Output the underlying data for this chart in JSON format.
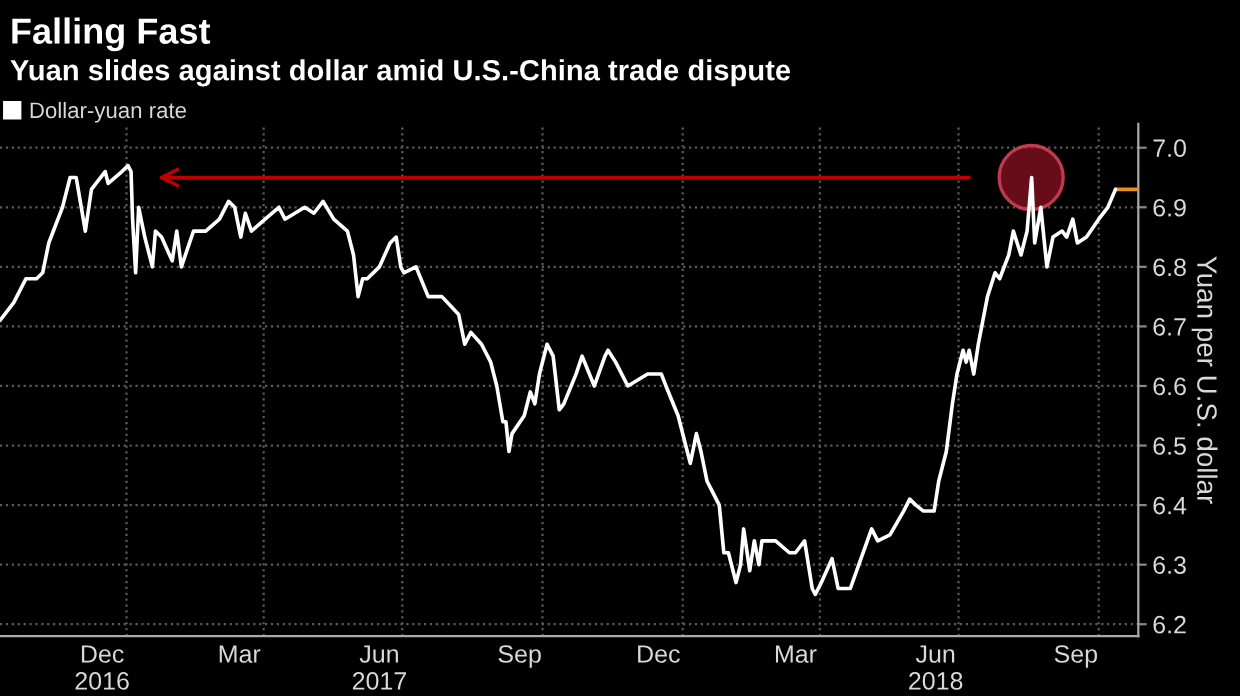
{
  "chart_data": {
    "type": "line",
    "title": "Falling Fast",
    "subtitle": "Yuan slides against dollar amid U.S.-China trade dispute",
    "ylabel": "Yuan per U.S. dollar",
    "x": [
      "2016-10-10",
      "2016-10-19",
      "2016-10-27",
      "2016-11-03",
      "2016-11-07",
      "2016-11-11",
      "2016-11-20",
      "2016-11-25",
      "2016-11-29",
      "2016-12-05",
      "2016-12-09",
      "2016-12-18",
      "2016-12-20",
      "2016-12-29",
      "2017-01-02",
      "2017-01-04",
      "2017-01-05",
      "2017-01-07",
      "2017-01-09",
      "2017-01-13",
      "2017-01-18",
      "2017-01-20",
      "2017-01-24",
      "2017-01-31",
      "2017-02-03",
      "2017-02-06",
      "2017-02-14",
      "2017-02-22",
      "2017-03-03",
      "2017-03-09",
      "2017-03-13",
      "2017-03-17",
      "2017-03-20",
      "2017-03-24",
      "2017-04-02",
      "2017-04-11",
      "2017-04-15",
      "2017-04-28",
      "2017-05-04",
      "2017-05-10",
      "2017-05-17",
      "2017-05-26",
      "2017-05-30",
      "2017-06-02",
      "2017-06-05",
      "2017-06-08",
      "2017-06-16",
      "2017-06-23",
      "2017-06-27",
      "2017-06-30",
      "2017-07-02",
      "2017-07-10",
      "2017-07-18",
      "2017-07-27",
      "2017-08-07",
      "2017-08-11",
      "2017-08-15",
      "2017-08-22",
      "2017-08-28",
      "2017-09-01",
      "2017-09-05",
      "2017-09-07",
      "2017-09-09",
      "2017-09-11",
      "2017-09-19",
      "2017-09-23",
      "2017-09-26",
      "2017-09-29",
      "2017-10-04",
      "2017-10-08",
      "2017-10-12",
      "2017-10-15",
      "2017-10-23",
      "2017-10-27",
      "2017-11-04",
      "2017-11-11",
      "2017-11-13",
      "2017-11-18",
      "2017-11-26",
      "2017-12-09",
      "2017-12-18",
      "2017-12-21",
      "2017-12-29",
      "2018-01-03",
      "2018-01-06",
      "2018-01-10",
      "2018-01-13",
      "2018-01-17",
      "2018-01-21",
      "2018-01-25",
      "2018-01-28",
      "2018-01-31",
      "2018-02-05",
      "2018-02-08",
      "2018-02-10",
      "2018-02-14",
      "2018-02-17",
      "2018-02-20",
      "2018-02-22",
      "2018-03-03",
      "2018-03-12",
      "2018-03-16",
      "2018-03-22",
      "2018-03-27",
      "2018-03-29",
      "2018-04-02",
      "2018-04-09",
      "2018-04-13",
      "2018-04-21",
      "2018-04-28",
      "2018-05-05",
      "2018-05-09",
      "2018-05-17",
      "2018-05-26",
      "2018-05-30",
      "2018-06-03",
      "2018-06-08",
      "2018-06-15",
      "2018-06-18",
      "2018-06-23",
      "2018-06-27",
      "2018-06-30",
      "2018-07-04",
      "2018-07-06",
      "2018-07-08",
      "2018-07-11",
      "2018-07-14",
      "2018-07-20",
      "2018-07-25",
      "2018-07-28",
      "2018-08-03",
      "2018-08-06",
      "2018-08-11",
      "2018-08-15",
      "2018-08-18",
      "2018-08-20",
      "2018-08-24",
      "2018-08-28",
      "2018-09-01",
      "2018-09-07",
      "2018-09-10",
      "2018-09-14",
      "2018-09-17",
      "2018-09-23",
      "2018-10-01",
      "2018-10-07",
      "2018-10-12"
    ],
    "series": [
      {
        "name": "Dollar-yuan rate",
        "color": "#ffffff",
        "values": [
          6.71,
          6.74,
          6.78,
          6.78,
          6.79,
          6.84,
          6.9,
          6.95,
          6.95,
          6.86,
          6.93,
          6.96,
          6.94,
          6.96,
          6.97,
          6.96,
          6.88,
          6.79,
          6.9,
          6.85,
          6.8,
          6.86,
          6.85,
          6.81,
          6.86,
          6.8,
          6.86,
          6.86,
          6.88,
          6.91,
          6.9,
          6.85,
          6.89,
          6.86,
          6.88,
          6.9,
          6.88,
          6.9,
          6.89,
          6.91,
          6.88,
          6.86,
          6.82,
          6.75,
          6.78,
          6.78,
          6.8,
          6.84,
          6.85,
          6.8,
          6.79,
          6.8,
          6.75,
          6.75,
          6.72,
          6.67,
          6.69,
          6.67,
          6.64,
          6.6,
          6.54,
          6.54,
          6.49,
          6.52,
          6.55,
          6.59,
          6.57,
          6.62,
          6.67,
          6.65,
          6.56,
          6.57,
          6.62,
          6.65,
          6.6,
          6.65,
          6.66,
          6.64,
          6.6,
          6.62,
          6.62,
          6.6,
          6.55,
          6.5,
          6.47,
          6.52,
          6.49,
          6.44,
          6.42,
          6.4,
          6.32,
          6.32,
          6.27,
          6.3,
          6.36,
          6.29,
          6.34,
          6.3,
          6.34,
          6.34,
          6.32,
          6.32,
          6.34,
          6.26,
          6.25,
          6.27,
          6.31,
          6.26,
          6.26,
          6.31,
          6.36,
          6.34,
          6.35,
          6.39,
          6.41,
          6.4,
          6.39,
          6.39,
          6.44,
          6.49,
          6.57,
          6.62,
          6.66,
          6.64,
          6.66,
          6.62,
          6.67,
          6.75,
          6.79,
          6.78,
          6.82,
          6.86,
          6.82,
          6.86,
          6.95,
          6.84,
          6.9,
          6.8,
          6.85,
          6.86,
          6.85,
          6.88,
          6.84,
          6.85,
          6.88,
          6.9,
          6.93
        ]
      },
      {
        "color": "#e8901e",
        "x": [
          "2018-10-12",
          "2018-10-27"
        ],
        "values": [
          6.93,
          6.93
        ]
      },
      {
        "color": "#c00000",
        "x": [
          "2017-01-24",
          "2018-07-08"
        ],
        "values": [
          6.95,
          6.95
        ]
      }
    ],
    "xlim": [
      "2016-10-10",
      "2018-10-27"
    ],
    "xticks": [
      {
        "value": "2016-12-16",
        "label": "Dec\n2016"
      },
      {
        "value": "2017-03-16",
        "label": "Mar"
      },
      {
        "value": "2017-06-16",
        "label": "Jun\n2017"
      },
      {
        "value": "2017-09-16",
        "label": "Sep"
      },
      {
        "value": "2017-12-16",
        "label": "Dec"
      },
      {
        "value": "2018-03-16",
        "label": "Mar"
      },
      {
        "value": "2018-06-16",
        "label": "Jun\n2018"
      },
      {
        "value": "2018-09-16",
        "label": "Sep"
      },
      {
        "value": "2017-01-01",
        "label": null
      },
      {
        "value": "2017-04-01",
        "label": null
      },
      {
        "value": "2017-07-01",
        "label": null
      },
      {
        "value": "2017-10-01",
        "label": null
      },
      {
        "value": "2018-01-01",
        "label": null
      },
      {
        "value": "2018-04-01",
        "label": null
      },
      {
        "value": "2018-07-01",
        "label": null
      },
      {
        "value": "2018-10-01",
        "label": null
      }
    ],
    "ylim": [
      6.18,
      7.04
    ],
    "yticks": [
      6.2,
      6.3,
      6.4,
      6.5,
      6.6,
      6.7,
      6.8,
      6.9,
      {
        "value": 7,
        "label": "7.0"
      }
    ],
    "grid": true,
    "legend": "top left",
    "line_style": "solid",
    "marker": "none"
  }
}
